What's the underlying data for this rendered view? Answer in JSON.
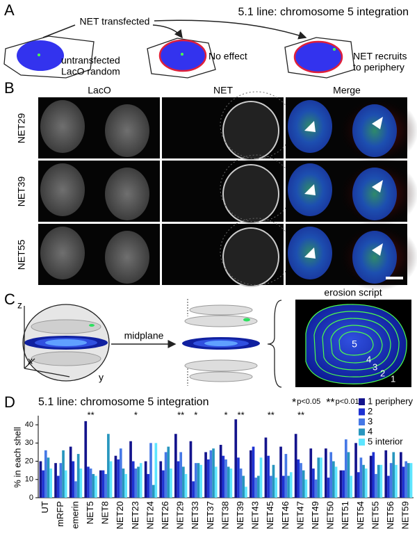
{
  "panels": {
    "A": {
      "label": "A",
      "title": "5.1 line: chromosome 5 integration",
      "transfection": "NET transfected",
      "cells": [
        [
          "untransfected",
          "LacO random"
        ],
        [
          "No effect"
        ],
        [
          "NET recruits",
          "to periphery"
        ]
      ]
    },
    "B": {
      "label": "B",
      "columns": [
        "LacO",
        "NET",
        "Merge"
      ],
      "rows": [
        "NET29",
        "NET39",
        "NET55"
      ]
    },
    "C": {
      "label": "C",
      "axes": [
        "z",
        "x",
        "y"
      ],
      "step": "midplane",
      "script_title": "erosion script",
      "shells": [
        "5",
        "4",
        "3",
        "2",
        "1"
      ]
    },
    "D": {
      "label": "D"
    }
  },
  "chart_data": {
    "type": "bar",
    "title": "5.1 line: chromosome 5 integration",
    "y_label": "% in each shell",
    "categories": [
      "UT",
      "mRFP",
      "emerin",
      "NET5",
      "NET8",
      "NET20",
      "NET23",
      "NET24",
      "NET26",
      "NET29",
      "NET33",
      "NET37",
      "NET38",
      "NET39",
      "NET43",
      "NET45",
      "NET46",
      "NET47",
      "NET49",
      "NET50",
      "NET51",
      "NET54",
      "NET55",
      "NET56",
      "NET59"
    ],
    "series": [
      {
        "name": "1 periphery",
        "color": "#14148c",
        "values": [
          20,
          19,
          28,
          42,
          15,
          23,
          31,
          20,
          20,
          35,
          31,
          25,
          29,
          43,
          26,
          33,
          28,
          35,
          27,
          27,
          15,
          30,
          23,
          26,
          25
        ]
      },
      {
        "name": "2",
        "color": "#1e32d2",
        "values": [
          15,
          12,
          20,
          17,
          15,
          21,
          20,
          13,
          15,
          20,
          9,
          21,
          23,
          22,
          28,
          23,
          12,
          21,
          16,
          11,
          15,
          14,
          25,
          12,
          17
        ]
      },
      {
        "name": "3",
        "color": "#4678e6",
        "values": [
          26,
          19,
          9,
          16,
          13,
          27,
          16,
          30,
          25,
          25,
          19,
          26,
          21,
          16,
          11,
          12,
          24,
          19,
          10,
          25,
          32,
          22,
          13,
          19,
          20
        ]
      },
      {
        "name": "4",
        "color": "#2896be",
        "values": [
          22,
          26,
          24,
          13,
          35,
          16,
          17,
          7,
          28,
          17,
          19,
          27,
          17,
          12,
          12,
          18,
          12,
          15,
          22,
          20,
          25,
          18,
          18,
          25,
          19
        ]
      },
      {
        "name": "5 interior",
        "color": "#5ee6ff",
        "values": [
          16,
          15,
          16,
          12,
          20,
          13,
          19,
          30,
          16,
          13,
          18,
          17,
          16,
          6,
          22,
          11,
          14,
          10,
          22,
          17,
          12,
          16,
          18,
          18,
          19
        ]
      }
    ],
    "significance": [
      null,
      null,
      null,
      "**",
      null,
      null,
      "*",
      null,
      null,
      "**",
      "*",
      null,
      "*",
      "**",
      null,
      "**",
      null,
      "**",
      null,
      null,
      null,
      "*",
      null,
      null,
      null
    ],
    "significance_legend": [
      {
        "symbol": "*",
        "label": "p<0.05"
      },
      {
        "symbol": "**",
        "label": "p<0.01"
      }
    ],
    "ylim": [
      0,
      45
    ],
    "yticks": [
      0,
      10,
      20,
      30,
      40
    ]
  }
}
